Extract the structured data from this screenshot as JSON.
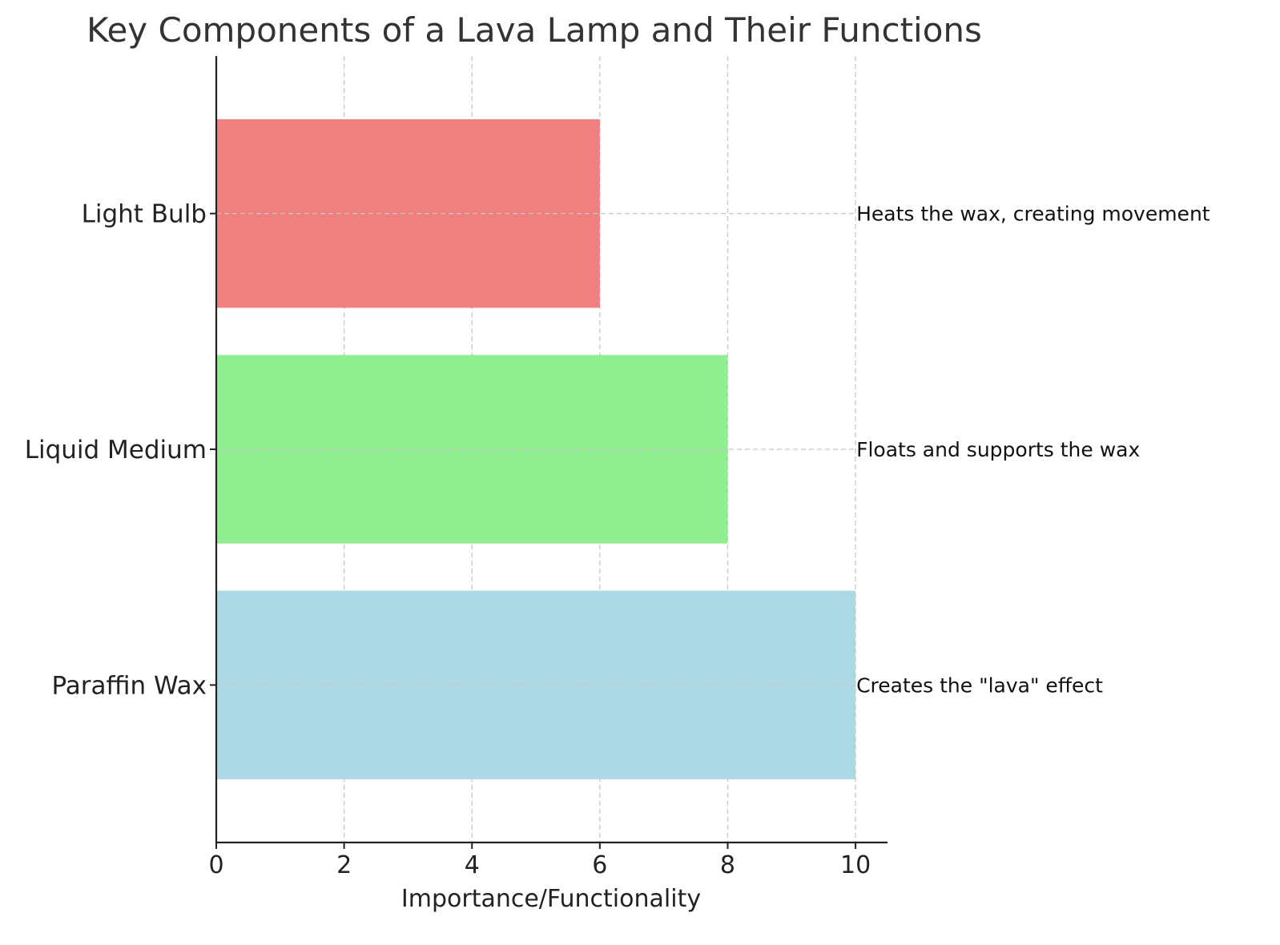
{
  "chart_data": {
    "type": "bar",
    "orientation": "horizontal",
    "title": "Key Components of a Lava Lamp and Their Functions",
    "xlabel": "Importance/Functionality",
    "ylabel": "",
    "categories": [
      "Paraffin Wax",
      "Liquid Medium",
      "Light Bulb"
    ],
    "values": [
      10,
      8,
      6
    ],
    "colors": [
      "#add8e6",
      "#90ee90",
      "#f08080"
    ],
    "annotations": [
      "Creates the \"lava\" effect",
      "Floats and supports the wax",
      "Heats the wax, creating movement"
    ],
    "xlim": [
      0,
      10.5
    ],
    "xticks": [
      0,
      2,
      4,
      6,
      8,
      10
    ],
    "xtick_labels": [
      "0",
      "2",
      "4",
      "6",
      "8",
      "10"
    ],
    "grid": true,
    "grid_color": "#c8c8c8",
    "axis_color": "#222222"
  }
}
